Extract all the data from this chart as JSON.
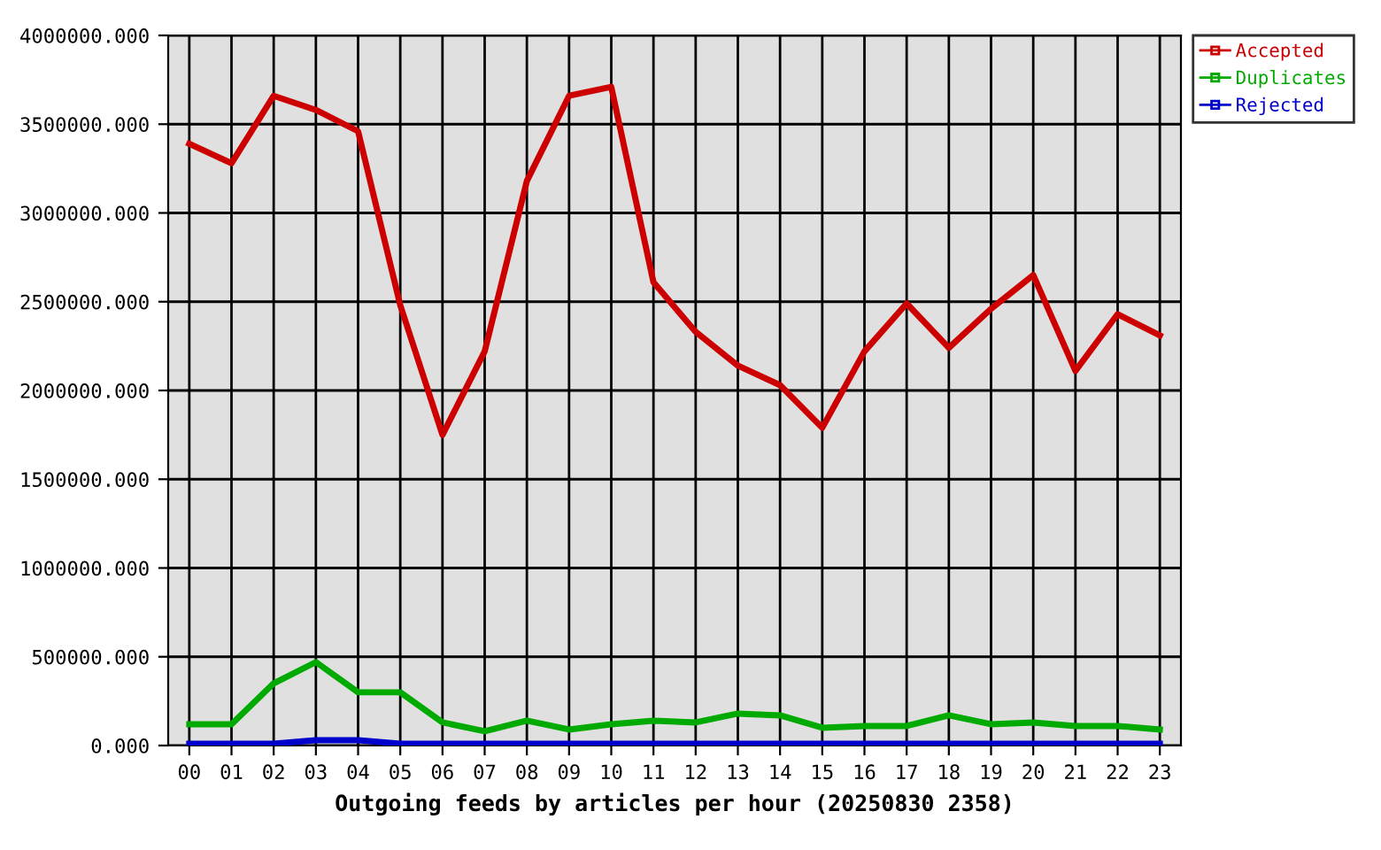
{
  "chart_data": {
    "type": "line",
    "xlabel": "Outgoing feeds by articles per hour (20250830 2358)",
    "categories": [
      "00",
      "01",
      "02",
      "03",
      "04",
      "05",
      "06",
      "07",
      "08",
      "09",
      "10",
      "11",
      "12",
      "13",
      "14",
      "15",
      "16",
      "17",
      "18",
      "19",
      "20",
      "21",
      "22",
      "23"
    ],
    "series": [
      {
        "name": "Accepted",
        "color": "#cc0000",
        "values": [
          3390000,
          3280000,
          3660000,
          3580000,
          3460000,
          2480000,
          1750000,
          2220000,
          3180000,
          3660000,
          3710000,
          2610000,
          2330000,
          2140000,
          2030000,
          1790000,
          2220000,
          2490000,
          2240000,
          2460000,
          2650000,
          2110000,
          2430000,
          2310000
        ]
      },
      {
        "name": "Duplicates",
        "color": "#00aa00",
        "values": [
          120000,
          120000,
          350000,
          470000,
          300000,
          300000,
          130000,
          80000,
          140000,
          90000,
          120000,
          140000,
          130000,
          180000,
          170000,
          100000,
          110000,
          110000,
          170000,
          120000,
          130000,
          110000,
          110000,
          90000
        ]
      },
      {
        "name": "Rejected",
        "color": "#0000cc",
        "values": [
          10000,
          10000,
          10000,
          30000,
          30000,
          10000,
          10000,
          10000,
          10000,
          10000,
          10000,
          10000,
          10000,
          10000,
          10000,
          10000,
          10000,
          10000,
          10000,
          10000,
          10000,
          10000,
          10000,
          10000
        ]
      }
    ],
    "ylim": [
      0,
      4000000
    ],
    "yticks": [
      {
        "value": 0,
        "label": "0.000"
      },
      {
        "value": 500000,
        "label": "500000.000"
      },
      {
        "value": 1000000,
        "label": "1000000.000"
      },
      {
        "value": 1500000,
        "label": "1500000.000"
      },
      {
        "value": 2000000,
        "label": "2000000.000"
      },
      {
        "value": 2500000,
        "label": "2500000.000"
      },
      {
        "value": 3000000,
        "label": "3000000.000"
      },
      {
        "value": 3500000,
        "label": "3500000.000"
      },
      {
        "value": 4000000,
        "label": "4000000.000"
      }
    ],
    "grid": true,
    "legend": "top right",
    "line_style": "solid"
  }
}
